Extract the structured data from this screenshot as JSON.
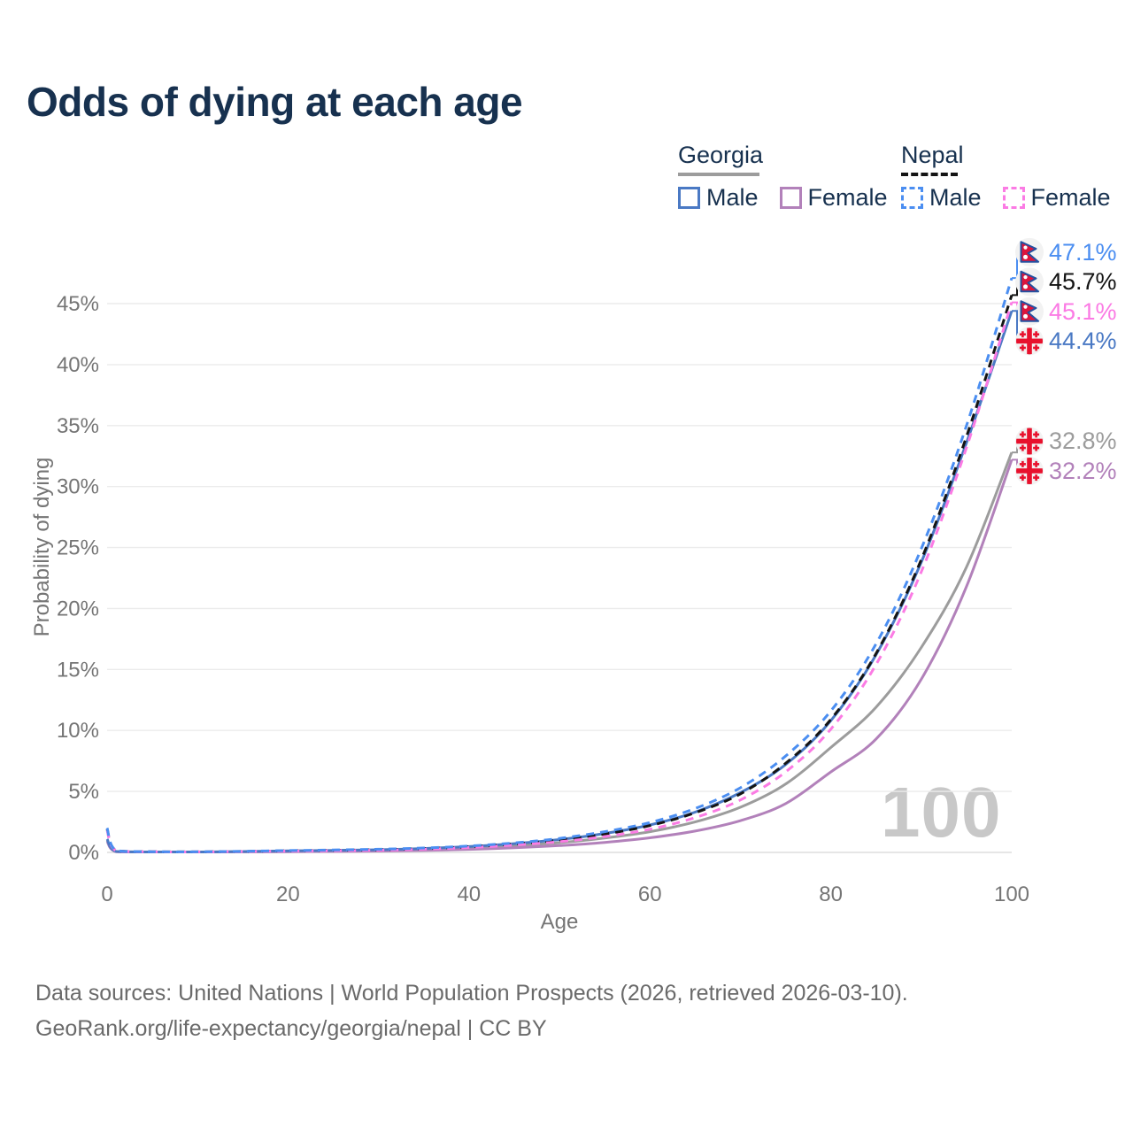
{
  "header": {
    "title": "Odds of dying at each age"
  },
  "legend": {
    "groups": [
      {
        "country": "Georgia",
        "line_style": "solid",
        "line_color": "#9c9c9c",
        "items": [
          {
            "label": "Male",
            "color": "#4a79c4",
            "style": "solid"
          },
          {
            "label": "Female",
            "color": "#b281ba",
            "style": "solid"
          }
        ]
      },
      {
        "country": "Nepal",
        "line_style": "dashed",
        "line_color": "#141414",
        "items": [
          {
            "label": "Male",
            "color": "#4b8ef1",
            "style": "dashed"
          },
          {
            "label": "Female",
            "color": "#fb7be4",
            "style": "dashed"
          }
        ]
      }
    ]
  },
  "axes": {
    "x_title": "Age",
    "y_title": "Probability of dying"
  },
  "watermark": "100",
  "footer": {
    "line1": "Data sources: United Nations | World Population Prospects (2026, retrieved 2026-03-10).",
    "line2": "GeoRank.org/life-expectancy/georgia/nepal | CC BY"
  },
  "colors": {
    "title_text": "#17314f",
    "tick_text": "#757575",
    "gridline": "#ebebeb",
    "zero_line": "#dedede",
    "watermark": "#c8c8c8",
    "nepal_flag_red": "#dc143c",
    "nepal_flag_border": "#2450a0",
    "georgia_flag_red": "#e8112d",
    "flag_circle_bg": "#f2f2f2"
  },
  "chart_data": {
    "type": "line",
    "title": "Odds of dying at each age",
    "xlabel": "Age",
    "ylabel": "Probability of dying",
    "xlim": [
      0,
      100
    ],
    "ylim": [
      0,
      50
    ],
    "grid": true,
    "legend_position": "top-right",
    "frame_age_label": "100",
    "x_ticks": [
      0,
      20,
      40,
      60,
      80,
      100
    ],
    "y_ticks": [
      0,
      5,
      10,
      15,
      20,
      25,
      30,
      35,
      40,
      45
    ],
    "y_tick_labels": [
      "0%",
      "5%",
      "10%",
      "15%",
      "20%",
      "25%",
      "30%",
      "35%",
      "40%",
      "45%"
    ],
    "x": [
      0,
      1,
      5,
      10,
      15,
      20,
      25,
      30,
      35,
      40,
      45,
      50,
      55,
      60,
      65,
      70,
      75,
      80,
      85,
      90,
      95,
      100
    ],
    "series": [
      {
        "name": "Georgia (both sexes)",
        "country": "Georgia",
        "sex": "both",
        "style": "solid",
        "color": "#9c9c9c",
        "flag": "georgia",
        "end_label": "32.8%",
        "values": [
          1.0,
          0.07,
          0.025,
          0.025,
          0.055,
          0.09,
          0.13,
          0.17,
          0.24,
          0.37,
          0.55,
          0.8,
          1.18,
          1.7,
          2.5,
          3.7,
          5.6,
          8.6,
          11.9,
          16.8,
          23.4,
          32.8
        ]
      },
      {
        "name": "Georgia Female",
        "country": "Georgia",
        "sex": "female",
        "style": "solid",
        "color": "#b281ba",
        "flag": "georgia",
        "end_label": "32.2%",
        "values": [
          0.9,
          0.06,
          0.02,
          0.02,
          0.04,
          0.06,
          0.08,
          0.11,
          0.16,
          0.25,
          0.38,
          0.56,
          0.82,
          1.2,
          1.75,
          2.6,
          4.0,
          6.6,
          9.3,
          14.2,
          21.8,
          32.2
        ]
      },
      {
        "name": "Georgia Male",
        "country": "Georgia",
        "sex": "male",
        "style": "solid",
        "color": "#4a79c4",
        "flag": "georgia",
        "end_label": "44.4%",
        "values": [
          1.1,
          0.08,
          0.03,
          0.03,
          0.07,
          0.12,
          0.17,
          0.22,
          0.32,
          0.48,
          0.72,
          1.05,
          1.55,
          2.25,
          3.3,
          4.9,
          7.2,
          10.8,
          16.2,
          23.8,
          33.6,
          44.4
        ]
      },
      {
        "name": "Nepal (both sexes)",
        "country": "Nepal",
        "sex": "both",
        "style": "dashed",
        "color": "#141414",
        "flag": "nepal",
        "end_label": "45.7%",
        "values": [
          1.9,
          0.15,
          0.055,
          0.045,
          0.08,
          0.13,
          0.17,
          0.22,
          0.31,
          0.46,
          0.69,
          1.02,
          1.5,
          2.2,
          3.25,
          4.8,
          7.3,
          10.9,
          16.3,
          24.0,
          34.1,
          45.7
        ]
      },
      {
        "name": "Nepal Female",
        "country": "Nepal",
        "sex": "female",
        "style": "dashed",
        "color": "#fb7be4",
        "flag": "nepal",
        "end_label": "45.1%",
        "values": [
          1.8,
          0.14,
          0.05,
          0.04,
          0.07,
          0.11,
          0.14,
          0.18,
          0.26,
          0.4,
          0.6,
          0.88,
          1.3,
          1.9,
          2.85,
          4.3,
          6.6,
          10.1,
          15.4,
          23.0,
          33.2,
          45.1
        ]
      },
      {
        "name": "Nepal Male",
        "country": "Nepal",
        "sex": "male",
        "style": "dashed",
        "color": "#4b8ef1",
        "flag": "nepal",
        "end_label": "47.1%",
        "values": [
          2.0,
          0.16,
          0.06,
          0.05,
          0.09,
          0.15,
          0.2,
          0.26,
          0.36,
          0.52,
          0.78,
          1.15,
          1.7,
          2.45,
          3.6,
          5.3,
          7.9,
          11.6,
          17.1,
          24.9,
          35.0,
          47.1
        ]
      }
    ]
  }
}
